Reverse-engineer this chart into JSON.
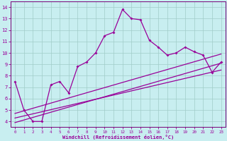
{
  "xlabel": "Windchill (Refroidissement éolien,°C)",
  "background_color": "#c8eef0",
  "grid_color": "#a0ccc8",
  "line_color": "#990099",
  "spine_color": "#770077",
  "xlim": [
    -0.5,
    23.5
  ],
  "ylim": [
    3.5,
    14.5
  ],
  "xticks": [
    0,
    1,
    2,
    3,
    4,
    5,
    6,
    7,
    8,
    9,
    10,
    11,
    12,
    13,
    14,
    15,
    16,
    17,
    18,
    19,
    20,
    21,
    22,
    23
  ],
  "yticks": [
    4,
    5,
    6,
    7,
    8,
    9,
    10,
    11,
    12,
    13,
    14
  ],
  "line1_x": [
    0,
    1,
    2,
    3,
    4,
    5,
    6,
    7,
    8,
    9,
    10,
    11,
    12,
    13,
    14,
    15,
    16,
    17,
    18,
    19,
    20,
    21,
    22,
    23
  ],
  "line1_y": [
    7.5,
    5.0,
    4.0,
    4.0,
    7.2,
    7.5,
    6.5,
    8.8,
    9.2,
    10.0,
    11.5,
    11.8,
    13.8,
    13.0,
    12.9,
    11.1,
    10.5,
    9.8,
    10.0,
    10.5,
    10.1,
    9.8,
    8.3,
    9.2
  ],
  "line2_x": [
    0,
    23
  ],
  "line2_y": [
    3.9,
    9.1
  ],
  "line3_x": [
    0,
    23
  ],
  "line3_y": [
    4.3,
    8.5
  ],
  "line4_x": [
    0,
    23
  ],
  "line4_y": [
    4.7,
    9.9
  ]
}
